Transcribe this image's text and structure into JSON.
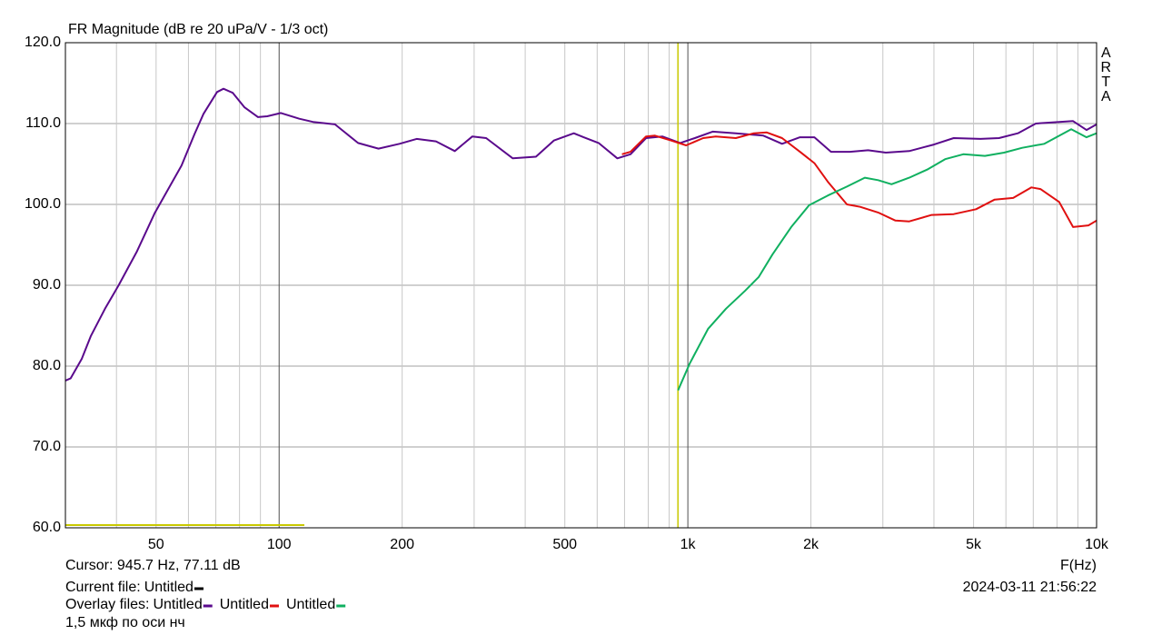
{
  "chart_data": {
    "type": "line",
    "title": "FR Magnitude (dB re 20 uPa/V - 1/3 oct)",
    "watermark": "ARTA",
    "x_label": "F(Hz)",
    "log_x": true,
    "grid": true,
    "xlim": [
      30,
      10000
    ],
    "ylim": [
      60,
      120
    ],
    "xticks": [
      50,
      100,
      200,
      500,
      {
        "value": 1000,
        "label": "1k"
      },
      {
        "value": 2000,
        "label": "2k"
      },
      {
        "value": 5000,
        "label": "5k"
      },
      {
        "value": 10000,
        "label": "10k"
      }
    ],
    "x_minor_ticks": [
      40,
      60,
      70,
      80,
      90,
      300,
      400,
      600,
      700,
      800,
      900,
      3000,
      4000,
      6000,
      7000,
      8000,
      9000
    ],
    "yticks": [
      {
        "value": 60,
        "label": "60.0"
      },
      {
        "value": 70,
        "label": "70.0"
      },
      {
        "value": 80,
        "label": "80.0"
      },
      {
        "value": 90,
        "label": "90.0"
      },
      {
        "value": 100,
        "label": "100.0"
      },
      {
        "value": 110,
        "label": "110.0"
      },
      {
        "value": 120,
        "label": "120.0"
      }
    ],
    "cursor_x": 945.7,
    "cursor_color": "#c8c800",
    "cursor_label": "Cursor: 945.7 Hz, 77.11 dB",
    "current_file_label": "Current file:",
    "current_file": "Untitled",
    "current_file_color": "#000000",
    "overlay_label": "Overlay files:",
    "timestamp": "2024-03-11  21:56:22",
    "note": "1,5 мкф по оси нч",
    "series": [
      {
        "name": "Untitled",
        "color": "#5a0a8c",
        "x": [
          30,
          30.9,
          32.9,
          34.6,
          37.5,
          40.5,
          44.9,
          49.6,
          54.8,
          57.7,
          62.1,
          65.3,
          70.5,
          73.1,
          77,
          82.3,
          88.8,
          93.5,
          101,
          112,
          121,
          137,
          156,
          175,
          197,
          217,
          242,
          269,
          297,
          321,
          373,
          425,
          470,
          526,
          556,
          605,
          672,
          724,
          790,
          866,
          958,
          1040,
          1150,
          1310,
          1530,
          1700,
          1880,
          2040,
          2240,
          2490,
          2760,
          3050,
          3480,
          4000,
          4470,
          5200,
          5770,
          6420,
          7100,
          8100,
          8760,
          9450,
          10000
        ],
        "values": [
          78.2,
          78.5,
          80.9,
          83.7,
          87.1,
          90,
          94.2,
          98.9,
          102.8,
          104.8,
          108.7,
          111.2,
          113.9,
          114.3,
          113.8,
          112,
          110.8,
          110.9,
          111.3,
          110.6,
          110.2,
          109.9,
          107.6,
          106.9,
          107.5,
          108.1,
          107.8,
          106.6,
          108.4,
          108.2,
          105.7,
          105.9,
          107.9,
          108.8,
          108.3,
          107.6,
          105.7,
          106.2,
          108.2,
          108.4,
          107.6,
          108.2,
          109,
          108.8,
          108.5,
          107.5,
          108.3,
          108.3,
          106.5,
          106.5,
          106.7,
          106.4,
          106.6,
          107.4,
          108.2,
          108.1,
          108.2,
          108.8,
          110,
          110.2,
          110.3,
          109.2,
          109.9
        ]
      },
      {
        "name": "Untitled",
        "color": "#e01010",
        "x": [
          690,
          724,
          790,
          831,
          910,
          990,
          1090,
          1170,
          1310,
          1450,
          1560,
          1700,
          1880,
          2040,
          2200,
          2450,
          2640,
          2920,
          3220,
          3480,
          3950,
          4470,
          5070,
          5630,
          6250,
          6930,
          7290,
          8100,
          8760,
          9550,
          10000
        ],
        "values": [
          106.2,
          106.5,
          108.4,
          108.5,
          107.9,
          107.3,
          108.2,
          108.4,
          108.2,
          108.8,
          108.9,
          108.2,
          106.5,
          105.1,
          102.8,
          100,
          99.7,
          99,
          98,
          97.9,
          98.7,
          98.8,
          99.4,
          100.6,
          100.8,
          102.1,
          101.9,
          100.3,
          97.2,
          97.4,
          98
        ]
      },
      {
        "name": "Untitled",
        "color": "#10b060",
        "x": [
          946,
          1010,
          1120,
          1240,
          1380,
          1490,
          1610,
          1790,
          1980,
          2200,
          2450,
          2710,
          2920,
          3150,
          3480,
          3850,
          4260,
          4720,
          5330,
          5940,
          6580,
          7450,
          8670,
          9450,
          10000
        ],
        "values": [
          77,
          80.3,
          84.6,
          87.1,
          89.3,
          91,
          93.8,
          97.2,
          99.9,
          101.1,
          102.2,
          103.3,
          103,
          102.5,
          103.3,
          104.3,
          105.6,
          106.2,
          106,
          106.4,
          107,
          107.5,
          109.3,
          108.3,
          108.8
        ]
      }
    ]
  }
}
